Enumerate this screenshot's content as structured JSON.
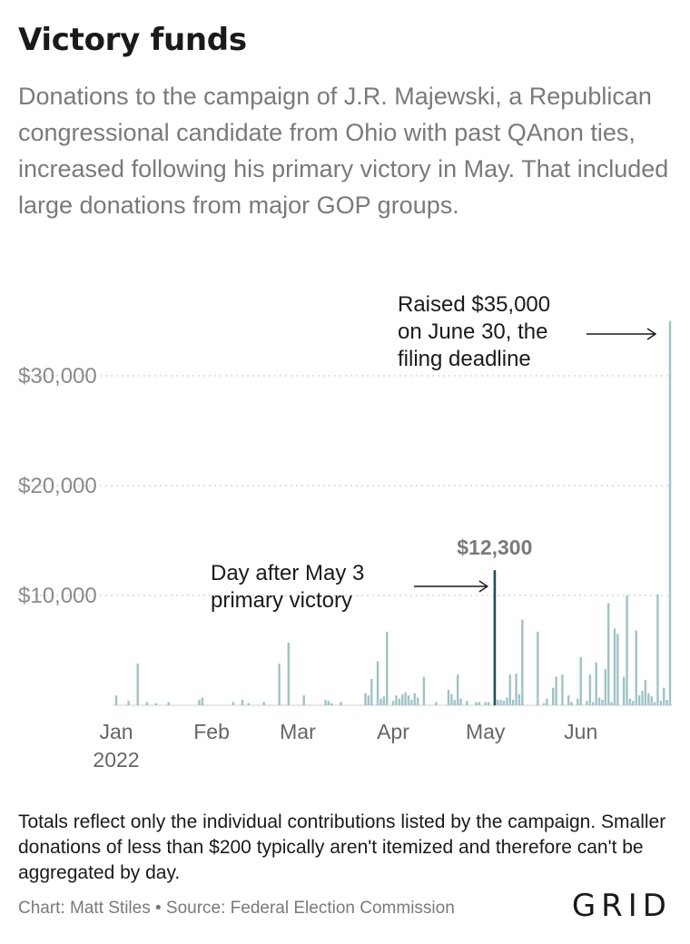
{
  "header": {
    "title": "Victory funds",
    "subtitle": "Donations to the campaign of J.R. Majewski, a Republican congressional candidate from Ohio with past QAnon ties, increased following his primary victory in May. That included large donations from major GOP groups."
  },
  "chart_data": {
    "type": "bar",
    "title": "Victory funds",
    "xlabel": "",
    "ylabel": "",
    "ylim": [
      0,
      35000
    ],
    "xlim": [
      "2022-01-01",
      "2022-06-30"
    ],
    "grid": true,
    "y_ticks": [
      {
        "value": 10000,
        "label": "$10,000"
      },
      {
        "value": 20000,
        "label": "$20,000"
      },
      {
        "value": 30000,
        "label": "$30,000"
      }
    ],
    "x_ticks": [
      {
        "date": "2022-01-01",
        "label": "Jan",
        "sublabel": "2022"
      },
      {
        "date": "2022-02-01",
        "label": "Feb"
      },
      {
        "date": "2022-03-01",
        "label": "Mar"
      },
      {
        "date": "2022-04-01",
        "label": "Apr"
      },
      {
        "date": "2022-05-01",
        "label": "May"
      },
      {
        "date": "2022-06-01",
        "label": "Jun"
      }
    ],
    "bar_color": "#9fc3c6",
    "highlight_color": "#1f4e57",
    "highlight_date": "2022-05-04",
    "series": [
      {
        "x": [
          "2022-01-01",
          "2022-01-05",
          "2022-01-08",
          "2022-01-11",
          "2022-01-14",
          "2022-01-18",
          "2022-01-28",
          "2022-01-29",
          "2022-02-08",
          "2022-02-11",
          "2022-02-13",
          "2022-02-18",
          "2022-02-23",
          "2022-02-26",
          "2022-03-03",
          "2022-03-10",
          "2022-03-11",
          "2022-03-12",
          "2022-03-15",
          "2022-03-23",
          "2022-03-24",
          "2022-03-25",
          "2022-03-27",
          "2022-03-28",
          "2022-03-29",
          "2022-03-30",
          "2022-04-01",
          "2022-04-02",
          "2022-04-03",
          "2022-04-04",
          "2022-04-05",
          "2022-04-06",
          "2022-04-07",
          "2022-04-08",
          "2022-04-09",
          "2022-04-11",
          "2022-04-15",
          "2022-04-19",
          "2022-04-20",
          "2022-04-21",
          "2022-04-22",
          "2022-04-23",
          "2022-04-25",
          "2022-04-28",
          "2022-04-29",
          "2022-05-01",
          "2022-05-02",
          "2022-05-04",
          "2022-05-05",
          "2022-05-06",
          "2022-05-07",
          "2022-05-08",
          "2022-05-09",
          "2022-05-10",
          "2022-05-11",
          "2022-05-12",
          "2022-05-13",
          "2022-05-18",
          "2022-05-20",
          "2022-05-21",
          "2022-05-23",
          "2022-05-24",
          "2022-05-26",
          "2022-05-28",
          "2022-05-29",
          "2022-05-31",
          "2022-06-01",
          "2022-06-03",
          "2022-06-04",
          "2022-06-05",
          "2022-06-06",
          "2022-06-07",
          "2022-06-08",
          "2022-06-09",
          "2022-06-10",
          "2022-06-11",
          "2022-06-12",
          "2022-06-13",
          "2022-06-15",
          "2022-06-16",
          "2022-06-17",
          "2022-06-18",
          "2022-06-19",
          "2022-06-20",
          "2022-06-21",
          "2022-06-22",
          "2022-06-23",
          "2022-06-24",
          "2022-06-25",
          "2022-06-26",
          "2022-06-27",
          "2022-06-28",
          "2022-06-29",
          "2022-06-30"
        ],
        "values": [
          900,
          400,
          3800,
          300,
          200,
          300,
          500,
          700,
          300,
          500,
          200,
          300,
          3800,
          5700,
          900,
          500,
          400,
          200,
          300,
          1100,
          900,
          2400,
          4000,
          600,
          800,
          6700,
          400,
          900,
          600,
          1000,
          1200,
          900,
          500,
          1100,
          700,
          2600,
          300,
          1400,
          1000,
          500,
          2800,
          600,
          400,
          300,
          300,
          300,
          300,
          12300,
          500,
          500,
          400,
          700,
          2800,
          500,
          2900,
          1000,
          7800,
          6700,
          200,
          600,
          1600,
          2600,
          2800,
          900,
          300,
          600,
          4400,
          400,
          2800,
          300,
          3900,
          700,
          500,
          3300,
          9300,
          300,
          7000,
          6500,
          2600,
          10000,
          600,
          400,
          6800,
          900,
          1300,
          2300,
          1100,
          800,
          300,
          10100,
          400,
          1600,
          500,
          35000
        ]
      }
    ],
    "annotations": [
      {
        "date": "2022-06-30",
        "text": [
          "Raised $35,000",
          "on June 30, the",
          "filing deadline"
        ]
      },
      {
        "date": "2022-05-04",
        "text": [
          "Day after May 3",
          "primary victory"
        ],
        "value_label": "$12,300"
      }
    ]
  },
  "footer": {
    "note": "Totals reflect only the individual contributions listed by the campaign. Smaller donations of less than $200 typically aren't itemized and therefore can't be aggregated by day.",
    "credit": "Chart: Matt Stiles • Source: Federal Election Commission",
    "logo": "GRID"
  }
}
